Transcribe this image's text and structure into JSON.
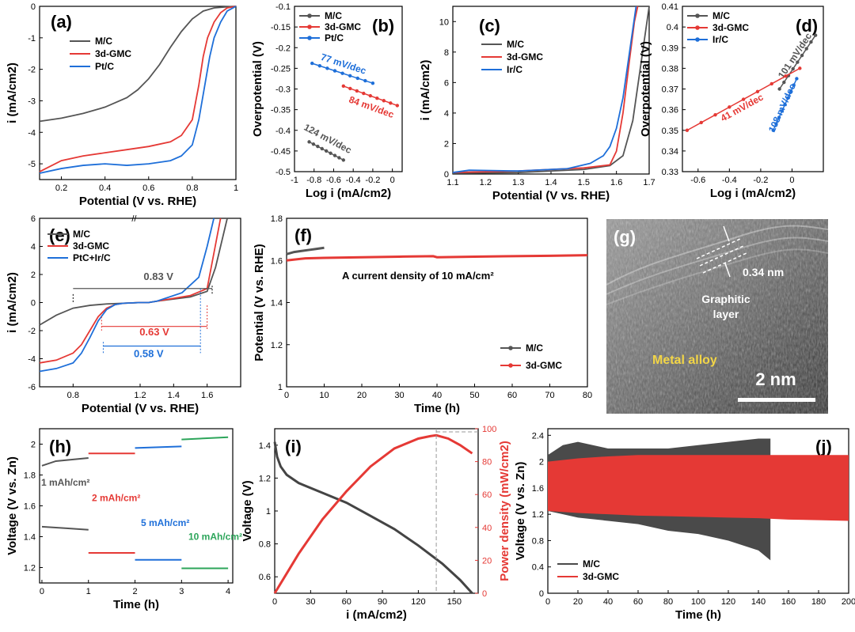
{
  "chart_data": [
    {
      "panel": "(a)",
      "type": "line",
      "xlabel": "Potential (V vs. RHE)",
      "ylabel": "i (mA/cm2)",
      "xlim": [
        0.1,
        1.0
      ],
      "ylim": [
        -5.5,
        0
      ],
      "xticks": [
        0.2,
        0.4,
        0.6,
        0.8,
        1.0
      ],
      "yticks": [
        0,
        -1,
        -2,
        -3,
        -4,
        -5
      ],
      "series": [
        {
          "name": "M/C",
          "color": "#555555",
          "x": [
            0.1,
            0.2,
            0.3,
            0.4,
            0.5,
            0.55,
            0.6,
            0.65,
            0.7,
            0.75,
            0.8,
            0.85,
            0.9,
            0.95,
            1.0
          ],
          "y": [
            -3.65,
            -3.55,
            -3.4,
            -3.2,
            -2.9,
            -2.65,
            -2.3,
            -1.85,
            -1.3,
            -0.8,
            -0.4,
            -0.15,
            -0.05,
            -0.02,
            0
          ]
        },
        {
          "name": "3d-GMC",
          "color": "#e53935",
          "x": [
            0.1,
            0.2,
            0.3,
            0.4,
            0.5,
            0.6,
            0.7,
            0.75,
            0.8,
            0.83,
            0.85,
            0.87,
            0.9,
            0.93,
            0.96,
            1.0
          ],
          "y": [
            -5.25,
            -4.9,
            -4.75,
            -4.65,
            -4.55,
            -4.45,
            -4.3,
            -4.1,
            -3.6,
            -2.5,
            -1.6,
            -1.0,
            -0.5,
            -0.2,
            -0.05,
            0
          ]
        },
        {
          "name": "Pt/C",
          "color": "#1e6fd9",
          "x": [
            0.1,
            0.2,
            0.3,
            0.4,
            0.5,
            0.6,
            0.7,
            0.75,
            0.8,
            0.83,
            0.86,
            0.88,
            0.9,
            0.93,
            0.96,
            1.0
          ],
          "y": [
            -5.3,
            -5.15,
            -5.05,
            -5.0,
            -5.05,
            -5.0,
            -4.9,
            -4.75,
            -4.4,
            -3.6,
            -2.4,
            -1.6,
            -1.0,
            -0.5,
            -0.15,
            0
          ]
        }
      ]
    },
    {
      "panel": "(b)",
      "type": "scatter",
      "xlabel": "Log i (mA/cm2)",
      "ylabel": "Overpotential (V)",
      "xlim": [
        -1.0,
        0.1
      ],
      "ylim": [
        -0.5,
        -0.1
      ],
      "xticks": [
        -1.0,
        -0.8,
        -0.6,
        -0.4,
        -0.2,
        0.0
      ],
      "yticks": [
        -0.1,
        -0.15,
        -0.2,
        -0.25,
        -0.3,
        -0.35,
        -0.4,
        -0.45,
        -0.5
      ],
      "series": [
        {
          "name": "M/C",
          "color": "#555555",
          "x": [
            -0.85,
            -0.5
          ],
          "y": [
            -0.428,
            -0.472
          ],
          "label": "124 mV/dec"
        },
        {
          "name": "3d-GMC",
          "color": "#e53935",
          "x": [
            -0.5,
            0.05
          ],
          "y": [
            -0.293,
            -0.34
          ],
          "label": "84 mV/dec"
        },
        {
          "name": "Pt/C",
          "color": "#1e6fd9",
          "x": [
            -0.82,
            -0.2
          ],
          "y": [
            -0.238,
            -0.286
          ],
          "label": "77 mV/dec"
        }
      ]
    },
    {
      "panel": "(c)",
      "type": "line",
      "xlabel": "Potential (V vs. RHE)",
      "ylabel": "i (mA/cm2)",
      "xlim": [
        1.1,
        1.7
      ],
      "ylim": [
        0,
        11
      ],
      "xticks": [
        1.1,
        1.2,
        1.3,
        1.4,
        1.5,
        1.6,
        1.7
      ],
      "yticks": [
        0,
        2,
        4,
        6,
        8,
        10
      ],
      "series": [
        {
          "name": "M/C",
          "color": "#555555",
          "x": [
            1.1,
            1.3,
            1.5,
            1.58,
            1.62,
            1.65,
            1.67,
            1.69,
            1.7
          ],
          "y": [
            0.05,
            0.1,
            0.3,
            0.55,
            1.2,
            3.5,
            6.5,
            9.5,
            11
          ]
        },
        {
          "name": "3d-GMC",
          "color": "#e53935",
          "x": [
            1.1,
            1.3,
            1.5,
            1.58,
            1.6,
            1.62,
            1.64,
            1.655,
            1.665
          ],
          "y": [
            0.1,
            0.2,
            0.4,
            0.6,
            1.5,
            4.0,
            7.5,
            10,
            11
          ]
        },
        {
          "name": "Ir/C",
          "color": "#1e6fd9",
          "x": [
            1.1,
            1.15,
            1.3,
            1.45,
            1.52,
            1.56,
            1.58,
            1.6,
            1.62,
            1.64,
            1.66
          ],
          "y": [
            0.1,
            0.25,
            0.2,
            0.35,
            0.7,
            1.2,
            1.8,
            3.0,
            5.0,
            8.0,
            11
          ]
        }
      ]
    },
    {
      "panel": "(d)",
      "type": "scatter",
      "xlabel": "Log i (mA/cm2)",
      "ylabel": "Overpotential (V)",
      "xlim": [
        -0.7,
        0.2
      ],
      "ylim": [
        0.33,
        0.41
      ],
      "xticks": [
        -0.6,
        -0.4,
        -0.2,
        0.0
      ],
      "yticks": [
        0.33,
        0.34,
        0.35,
        0.36,
        0.37,
        0.38,
        0.39,
        0.4,
        0.41
      ],
      "series": [
        {
          "name": "M/C",
          "color": "#555555",
          "x": [
            -0.08,
            0.15
          ],
          "y": [
            0.37,
            0.396
          ],
          "label": "101 mV/dec"
        },
        {
          "name": "3d-GMC",
          "color": "#e53935",
          "x": [
            -0.67,
            0.05
          ],
          "y": [
            0.35,
            0.38
          ],
          "label": "41 mV/dec"
        },
        {
          "name": "Ir/C",
          "color": "#1e6fd9",
          "x": [
            -0.12,
            0.03
          ],
          "y": [
            0.35,
            0.375
          ],
          "label": "108 mV/dec"
        }
      ]
    },
    {
      "panel": "(e)",
      "type": "line",
      "xlabel": "Potential (V vs. RHE)",
      "ylabel": "i (mA/cm2)",
      "xlim": [
        0.6,
        1.8
      ],
      "ylim": [
        -6,
        6
      ],
      "xticks": [
        0.8,
        1.2,
        1.4,
        1.6
      ],
      "yticks": [
        6,
        4,
        2,
        0,
        -2,
        -4,
        -6
      ],
      "gap_mark": "//",
      "series": [
        {
          "name": "M/C",
          "color": "#555555",
          "x": [
            0.6,
            0.7,
            0.8,
            0.9,
            1.0,
            1.1,
            1.2,
            1.25,
            1.3,
            1.5,
            1.6,
            1.65,
            1.7,
            1.72
          ],
          "y": [
            -1.6,
            -0.9,
            -0.4,
            -0.2,
            -0.1,
            -0.05,
            0,
            0.0,
            0.1,
            0.4,
            0.8,
            2.5,
            5,
            6
          ]
        },
        {
          "name": "3d-GMC",
          "color": "#e53935",
          "x": [
            0.6,
            0.7,
            0.8,
            0.85,
            0.9,
            0.95,
            1.0,
            1.05,
            1.1,
            1.2,
            1.25,
            1.3,
            1.5,
            1.6,
            1.64,
            1.68
          ],
          "y": [
            -4.3,
            -4.1,
            -3.6,
            -3.0,
            -2.0,
            -1.0,
            -0.4,
            -0.15,
            -0.05,
            0,
            0,
            0.1,
            0.5,
            1.0,
            3.5,
            6
          ]
        },
        {
          "name": "PtC+Ir/C",
          "color": "#1e6fd9",
          "x": [
            0.6,
            0.7,
            0.8,
            0.85,
            0.9,
            0.95,
            1.0,
            1.05,
            1.1,
            1.2,
            1.25,
            1.3,
            1.45,
            1.55,
            1.6,
            1.64
          ],
          "y": [
            -4.9,
            -4.7,
            -4.3,
            -3.6,
            -2.5,
            -1.3,
            -0.5,
            -0.15,
            -0.05,
            0,
            0,
            0.1,
            0.7,
            1.8,
            4,
            6
          ]
        }
      ],
      "annotations": [
        "0.83 V",
        "0.63 V",
        "0.58 V"
      ]
    },
    {
      "panel": "(f)",
      "type": "line",
      "xlabel": "Time (h)",
      "ylabel": "Potential (V vs. RHE)",
      "xlim": [
        0,
        80
      ],
      "ylim": [
        1.0,
        1.8
      ],
      "xticks": [
        0,
        10,
        20,
        30,
        40,
        50,
        60,
        70,
        80
      ],
      "yticks": [
        1.0,
        1.2,
        1.4,
        1.6,
        1.8
      ],
      "annotation": "A current density of 10 mA/cm²",
      "series": [
        {
          "name": "M/C",
          "color": "#555555",
          "x": [
            0,
            2,
            4,
            6,
            8,
            10
          ],
          "y": [
            1.63,
            1.64,
            1.645,
            1.65,
            1.655,
            1.66
          ]
        },
        {
          "name": "3d-GMC",
          "color": "#e53935",
          "x": [
            0,
            5,
            10,
            20,
            30,
            39,
            40,
            50,
            60,
            70,
            80
          ],
          "y": [
            1.6,
            1.61,
            1.612,
            1.615,
            1.618,
            1.62,
            1.615,
            1.618,
            1.62,
            1.622,
            1.625
          ]
        }
      ]
    },
    {
      "panel": "(h)",
      "type": "line",
      "xlabel": "Time (h)",
      "ylabel": "Voltage (V vs. Zn)",
      "xlim": [
        -0.05,
        4.1
      ],
      "ylim": [
        1.1,
        2.1
      ],
      "xticks": [
        0,
        1,
        2,
        3,
        4
      ],
      "yticks": [
        1.2,
        1.4,
        1.6,
        1.8,
        2.0
      ],
      "series": [
        {
          "name": "1 mAh/cm²",
          "color": "#555555",
          "x": [
            0,
            0.3,
            1,
            0,
            0.5,
            1
          ],
          "y": [
            1.86,
            1.89,
            1.91,
            1.465,
            1.455,
            1.445
          ]
        },
        {
          "name": "2 mAh/cm²",
          "color": "#e53935",
          "x": [
            1,
            2,
            1,
            2
          ],
          "y": [
            1.94,
            1.94,
            1.295,
            1.295
          ]
        },
        {
          "name": "5 mAh/cm²",
          "color": "#1e6fd9",
          "x": [
            2,
            3,
            2,
            3
          ],
          "y": [
            1.975,
            1.985,
            1.25,
            1.25
          ]
        },
        {
          "name": "10 mAh/cm²",
          "color": "#2ca55a",
          "x": [
            3,
            4,
            3,
            4
          ],
          "y": [
            2.03,
            2.045,
            1.195,
            1.195
          ]
        }
      ]
    },
    {
      "panel": "(i)",
      "type": "line",
      "xlabel": "i (mA/cm2)",
      "ylabel": "Voltage (V)",
      "ylabel2": "Power density (mW/cm2)",
      "xlim": [
        0,
        170
      ],
      "ylim": [
        0.5,
        1.5
      ],
      "ylim2": [
        0,
        100
      ],
      "xticks": [
        0,
        30,
        60,
        90,
        120,
        150
      ],
      "yticks": [
        0.6,
        0.8,
        1.0,
        1.2,
        1.4
      ],
      "yticks2": [
        0,
        20,
        40,
        60,
        80,
        100
      ],
      "series": [
        {
          "name": "Voltage",
          "color": "#444444",
          "x": [
            0,
            2,
            5,
            10,
            20,
            40,
            60,
            80,
            100,
            120,
            140,
            155,
            165
          ],
          "y": [
            1.42,
            1.33,
            1.27,
            1.22,
            1.17,
            1.11,
            1.05,
            0.97,
            0.89,
            0.79,
            0.68,
            0.58,
            0.5
          ]
        },
        {
          "name": "Power density",
          "color": "#e53935",
          "axis": "right",
          "x": [
            0,
            10,
            20,
            40,
            60,
            80,
            100,
            120,
            130,
            135,
            145,
            155,
            165
          ],
          "y": [
            0,
            12,
            24,
            45,
            62,
            77,
            88,
            94,
            95.5,
            96,
            94,
            90,
            85
          ]
        }
      ],
      "annotation_x": 135
    },
    {
      "panel": "(j)",
      "type": "area",
      "xlabel": "Time (h)",
      "ylabel": "Voltage (V vs. Zn)",
      "xlim": [
        0,
        200
      ],
      "ylim": [
        0,
        2.5
      ],
      "xticks": [
        0,
        20,
        40,
        60,
        80,
        100,
        120,
        140,
        160,
        180,
        200
      ],
      "yticks": [
        0.0,
        0.4,
        0.8,
        1.2,
        1.6,
        2.0,
        2.4
      ],
      "series": [
        {
          "name": "M/C",
          "color": "#4a4a4a",
          "x": [
            0,
            10,
            20,
            40,
            60,
            80,
            100,
            120,
            140,
            148
          ],
          "y_upper": [
            2.1,
            2.25,
            2.3,
            2.2,
            2.2,
            2.2,
            2.25,
            2.3,
            2.35,
            2.35
          ],
          "y_lower": [
            1.25,
            1.2,
            1.15,
            1.1,
            1.05,
            0.95,
            0.9,
            0.8,
            0.65,
            0.5
          ]
        },
        {
          "name": "3d-GMC",
          "color": "#e53935",
          "x": [
            0,
            20,
            40,
            60,
            80,
            100,
            120,
            140,
            160,
            180,
            200
          ],
          "y_upper": [
            2.0,
            2.05,
            2.08,
            2.1,
            2.1,
            2.1,
            2.1,
            2.1,
            2.1,
            2.1,
            2.1
          ],
          "y_lower": [
            1.25,
            1.22,
            1.2,
            1.18,
            1.17,
            1.16,
            1.15,
            1.14,
            1.12,
            1.11,
            1.1
          ]
        }
      ]
    }
  ],
  "panel_g": {
    "label": "(g)",
    "spacing": "0.34 nm",
    "layer_text_1": "Graphitic",
    "layer_text_2": "layer",
    "alloy_text": "Metal alloy",
    "scale_text": "2 nm"
  }
}
